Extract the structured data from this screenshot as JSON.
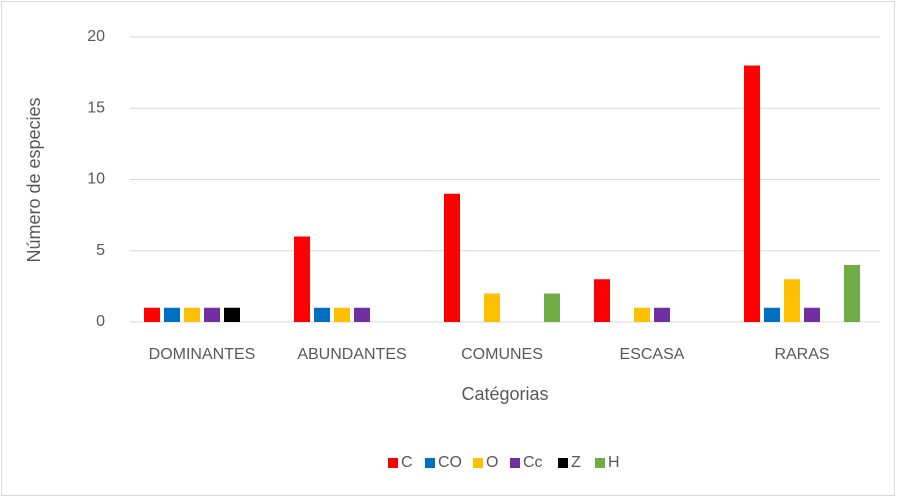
{
  "chart_data": {
    "type": "bar",
    "y_label": "Número de especies",
    "x_label": "Catégorias",
    "categories": [
      "DOMINANTES",
      "ABUNDANTES",
      "COMUNES",
      "ESCASA",
      "RARAS"
    ],
    "series": [
      {
        "name": "C",
        "color": "#ff0000",
        "values": [
          1,
          6,
          9,
          3,
          18
        ]
      },
      {
        "name": "CO",
        "color": "#0070c0",
        "values": [
          1,
          1,
          0,
          0,
          1
        ]
      },
      {
        "name": "O",
        "color": "#ffc000",
        "values": [
          1,
          1,
          2,
          1,
          3
        ]
      },
      {
        "name": "Cc",
        "color": "#7030a0",
        "values": [
          1,
          1,
          0,
          1,
          1
        ]
      },
      {
        "name": "Z",
        "color": "#000000",
        "values": [
          1,
          0,
          0,
          0,
          0
        ]
      },
      {
        "name": "H",
        "color": "#70ad47",
        "values": [
          0,
          0,
          2,
          0,
          4
        ]
      }
    ],
    "ylim": [
      0,
      20
    ],
    "yticks": [
      0,
      5,
      10,
      15,
      20
    ],
    "grid": true,
    "legend": "bottom"
  }
}
